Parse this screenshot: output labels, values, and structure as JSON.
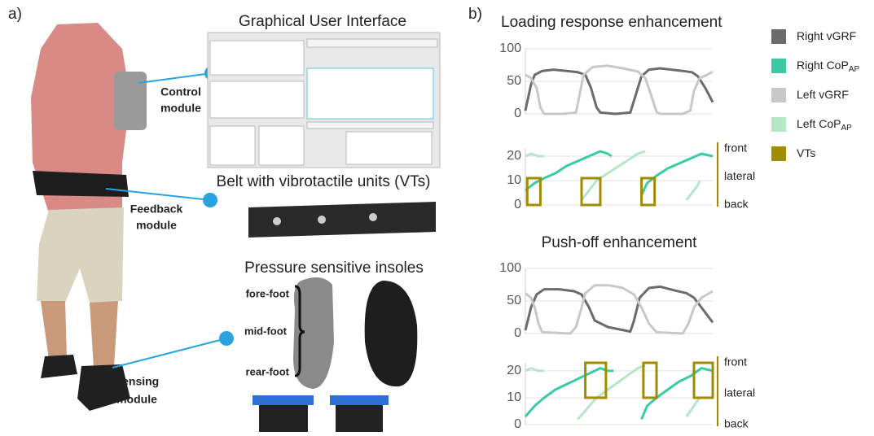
{
  "panel_a": {
    "label": "a)",
    "gui_title": "Graphical User Interface",
    "belt_title": "Belt with vibrotactile units (VTs)",
    "insole_title": "Pressure sensitive insoles",
    "control_module": [
      "Control",
      "module"
    ],
    "feedback_module": [
      "Feedback",
      "module"
    ],
    "sensing_module": [
      "Sensing",
      "module"
    ],
    "foot_regions": [
      "fore-foot",
      "mid-foot",
      "rear-foot"
    ]
  },
  "panel_b_label": "b)",
  "chart_data": [
    {
      "type": "line",
      "title": "Loading response enhancement",
      "xlim": [
        0,
        100
      ],
      "ylim": [
        0,
        100
      ],
      "yticks": [
        0,
        50,
        100
      ],
      "grid": true,
      "series": [
        {
          "name": "Right vGRF",
          "color": "#6b6b6b",
          "x": [
            0,
            3,
            5,
            9,
            15,
            22,
            28,
            32,
            35,
            38,
            40,
            48,
            56,
            59,
            62,
            66,
            72,
            78,
            84,
            89,
            92,
            96,
            100
          ],
          "values": [
            5,
            45,
            60,
            66,
            68,
            66,
            64,
            60,
            40,
            10,
            2,
            0,
            2,
            30,
            58,
            68,
            70,
            68,
            66,
            64,
            58,
            40,
            18
          ]
        },
        {
          "name": "Left vGRF",
          "color": "#c8c8c8",
          "x": [
            0,
            3,
            6,
            8,
            10,
            20,
            27,
            29,
            31,
            36,
            44,
            52,
            60,
            64,
            67,
            70,
            72,
            84,
            88,
            90,
            93,
            97,
            100
          ],
          "values": [
            60,
            55,
            40,
            10,
            0,
            0,
            2,
            30,
            60,
            72,
            74,
            70,
            65,
            55,
            30,
            3,
            0,
            0,
            5,
            35,
            55,
            60,
            65
          ]
        }
      ]
    },
    {
      "type": "line",
      "xlim": [
        0,
        100
      ],
      "ylim": [
        0,
        23
      ],
      "yticks": [
        0,
        10,
        20
      ],
      "grid": true,
      "side_labels": [
        "front",
        "lateral",
        "back"
      ],
      "side_color": "#a08c00",
      "series": [
        {
          "name": "Right CoP",
          "name_sub": "AP",
          "color": "#3cc9a6",
          "x": [
            0,
            5,
            10,
            16,
            22,
            28,
            34,
            40,
            44,
            46,
            54,
            62,
            65,
            70,
            76,
            82,
            88,
            94,
            100
          ],
          "values": [
            6,
            9,
            11,
            13,
            16,
            18,
            20,
            22,
            21,
            20,
            null,
            4,
            9,
            12,
            15,
            17,
            19,
            21,
            20
          ]
        },
        {
          "name": "Left CoP",
          "name_sub": "AP",
          "color": "#b5e6c6",
          "x": [
            0,
            3,
            7,
            10,
            20,
            30,
            34,
            38,
            44,
            50,
            56,
            60,
            64,
            75,
            86,
            89,
            92,
            93
          ],
          "values": [
            20,
            21,
            20,
            20,
            null,
            2,
            6,
            10,
            13,
            16,
            19,
            21,
            22,
            null,
            2,
            5,
            8,
            10
          ]
        }
      ],
      "vts": {
        "name": "VTs",
        "color": "#a08c00",
        "boxes": [
          {
            "x": [
              1,
              8
            ],
            "y": [
              0,
              11
            ]
          },
          {
            "x": [
              30,
              40
            ],
            "y": [
              0,
              11
            ]
          },
          {
            "x": [
              62,
              69
            ],
            "y": [
              0,
              11
            ]
          }
        ]
      }
    },
    {
      "type": "line",
      "title": "Push-off enhancement",
      "xlim": [
        0,
        100
      ],
      "ylim": [
        0,
        100
      ],
      "yticks": [
        0,
        50,
        100
      ],
      "grid": true,
      "series": [
        {
          "name": "Right vGRF",
          "color": "#6b6b6b",
          "x": [
            0,
            3,
            6,
            10,
            18,
            26,
            30,
            34,
            37,
            44,
            56,
            58,
            61,
            66,
            72,
            80,
            86,
            90,
            94,
            100
          ],
          "values": [
            5,
            40,
            60,
            68,
            68,
            65,
            60,
            40,
            20,
            10,
            3,
            20,
            55,
            70,
            72,
            66,
            62,
            55,
            40,
            17
          ]
        },
        {
          "name": "Left vGRF",
          "color": "#c8c8c8",
          "x": [
            0,
            3,
            5,
            7,
            9,
            24,
            27,
            30,
            32,
            37,
            45,
            52,
            58,
            62,
            66,
            70,
            84,
            87,
            90,
            94,
            100
          ],
          "values": [
            62,
            55,
            40,
            15,
            2,
            0,
            10,
            40,
            62,
            74,
            74,
            70,
            60,
            40,
            15,
            2,
            0,
            15,
            40,
            55,
            65
          ]
        }
      ]
    },
    {
      "type": "line",
      "xlim": [
        0,
        100
      ],
      "ylim": [
        0,
        23
      ],
      "yticks": [
        0,
        10,
        20
      ],
      "grid": true,
      "side_labels": [
        "front",
        "lateral",
        "back"
      ],
      "side_color": "#a08c00",
      "series": [
        {
          "name": "Right CoP",
          "name_sub": "AP",
          "color": "#3cc9a6",
          "x": [
            0,
            5,
            10,
            16,
            22,
            28,
            34,
            40,
            44,
            47,
            56,
            62,
            65,
            70,
            76,
            82,
            88,
            94,
            100
          ],
          "values": [
            3,
            7,
            10,
            13,
            15,
            17,
            19,
            21,
            20,
            20,
            null,
            2,
            7,
            10,
            13,
            16,
            18,
            21,
            20
          ]
        },
        {
          "name": "Left CoP",
          "name_sub": "AP",
          "color": "#b5e6c6",
          "x": [
            0,
            3,
            7,
            10,
            20,
            28,
            33,
            38,
            44,
            50,
            56,
            60,
            64,
            75,
            86,
            90,
            93
          ],
          "values": [
            20,
            21,
            20,
            20,
            null,
            2,
            6,
            10,
            13,
            16,
            19,
            21,
            22,
            null,
            3,
            7,
            10
          ]
        }
      ],
      "vts": {
        "color": "#a08c00",
        "boxes": [
          {
            "x": [
              32,
              43
            ],
            "y": [
              10,
              23
            ]
          },
          {
            "x": [
              63,
              70
            ],
            "y": [
              10,
              23
            ]
          },
          {
            "x": [
              90,
              100
            ],
            "y": [
              10,
              23
            ]
          }
        ]
      }
    }
  ]
}
